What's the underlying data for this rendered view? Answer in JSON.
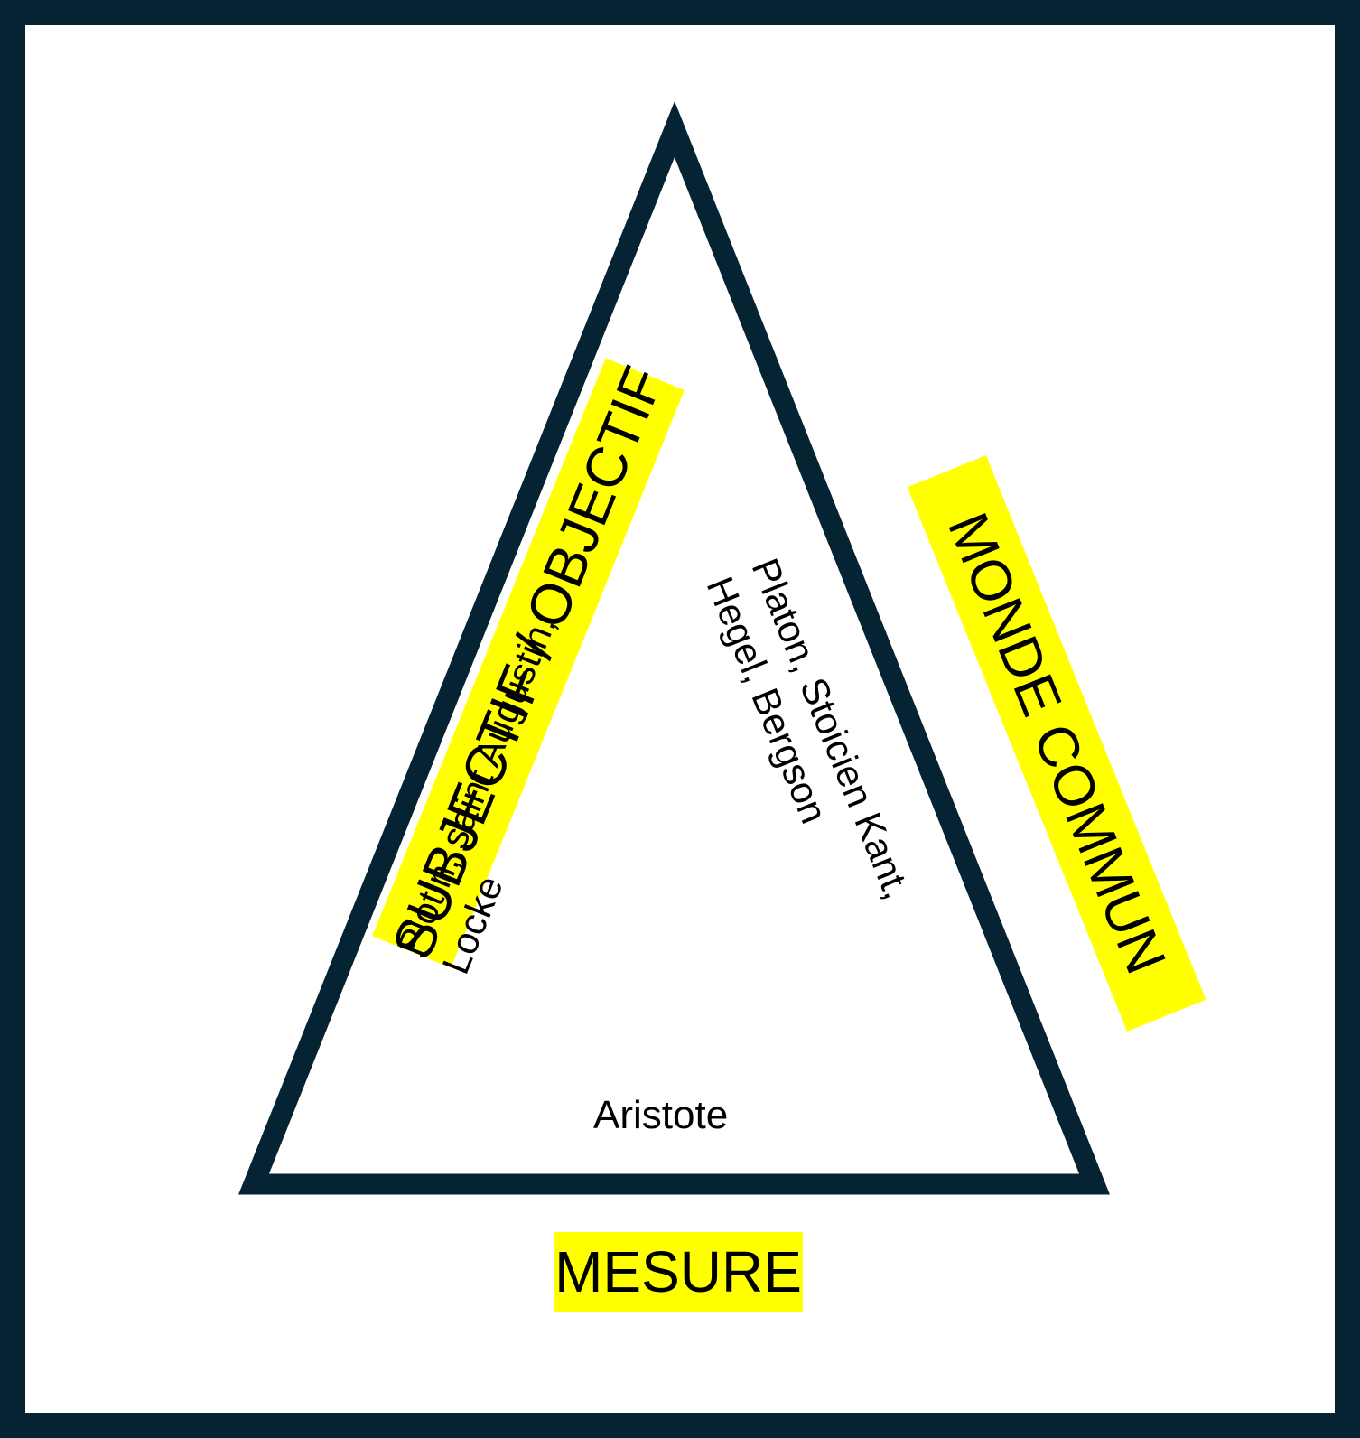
{
  "diagram": {
    "labels": {
      "left_side": "SUBJECTIF / OBJECTIF",
      "right_side": "MONDE COMMUN",
      "base": "MESURE"
    },
    "philosophers": {
      "left": [
        "Plotin, saint Augustin,",
        "Locke"
      ],
      "right": [
        "Platon, Stoicien Kant,",
        "Hegel, Bergson"
      ],
      "bottom": "Aristote"
    },
    "colors": {
      "frame": "#062333",
      "triangle_stroke": "#062333",
      "highlight": "#ffff00",
      "text": "#000000"
    }
  }
}
